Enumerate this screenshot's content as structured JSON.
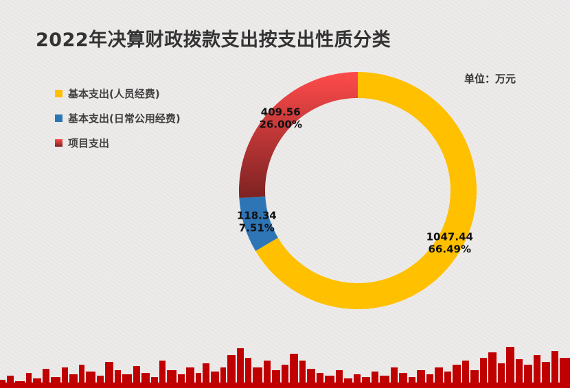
{
  "title": "2022年决算财政拨款支出按支出性质分类",
  "unit_label": "单位：万元",
  "colors": {
    "personnel": "#ffc000",
    "daily": "#2e75b6",
    "project_top": "#ff4b4b",
    "project_bottom": "#7d2222",
    "skyline": "#c00000"
  },
  "chart_data": {
    "type": "pie",
    "donut": true,
    "legend_position": "left",
    "series": [
      {
        "name": "基本支出(人员经费)",
        "value": 1047.44,
        "value_label": "1047.44",
        "percent_label": "66.49%",
        "color": "#ffc000"
      },
      {
        "name": "基本支出(日常公用经费)",
        "value": 118.34,
        "value_label": "118.34",
        "percent_label": "7.51%",
        "color": "#2e75b6"
      },
      {
        "name": "项目支出",
        "value": 409.56,
        "value_label": "409.56",
        "percent_label": "26.00%",
        "color": "#ff4b4b"
      }
    ]
  }
}
